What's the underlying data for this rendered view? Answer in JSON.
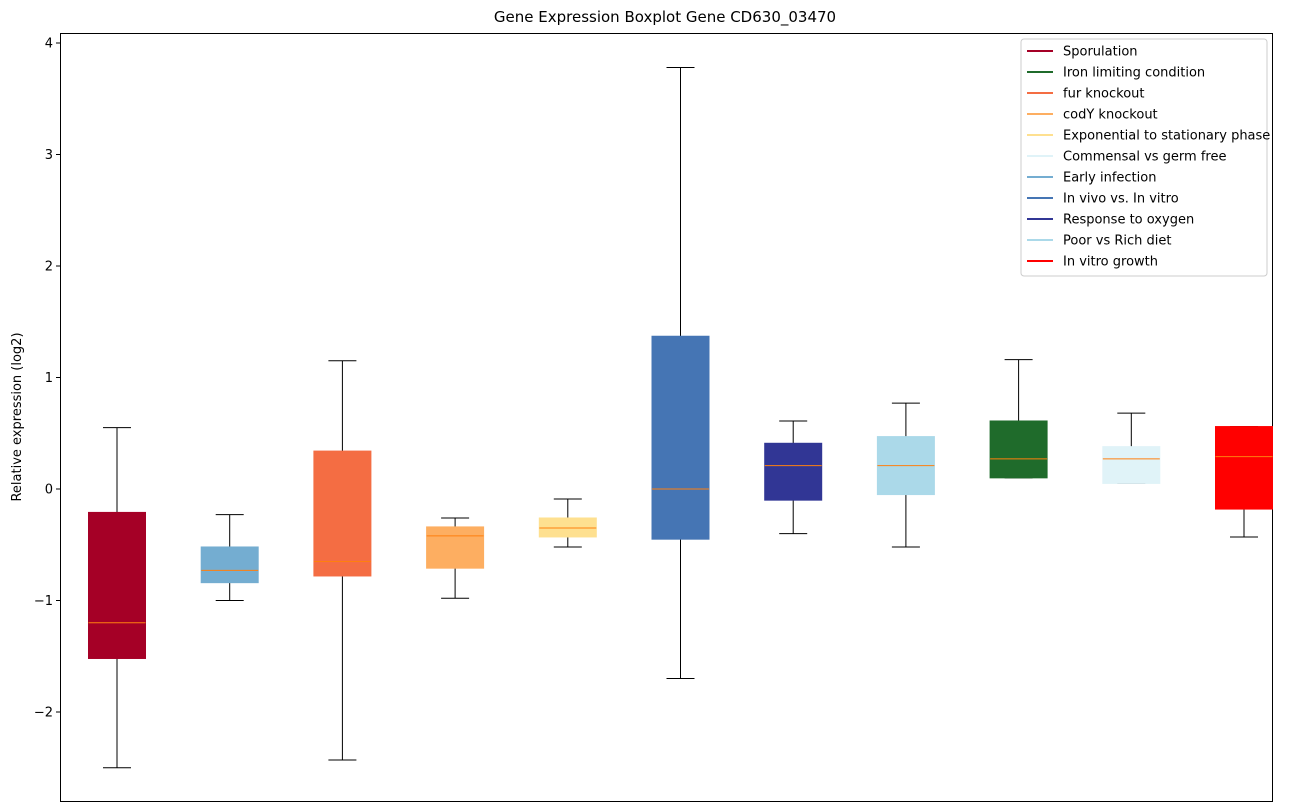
{
  "chart_data": {
    "type": "boxplot",
    "title": "Gene Expression Boxplot Gene CD630_03470",
    "xlabel": "",
    "ylabel": "Relative expression (log2)",
    "ylim": [
      -2.8,
      4.1
    ],
    "yticks": [
      {
        "value": -2,
        "label": "−2"
      },
      {
        "value": -1,
        "label": "−1"
      },
      {
        "value": 0,
        "label": "0"
      },
      {
        "value": 1,
        "label": "1"
      },
      {
        "value": 2,
        "label": "2"
      },
      {
        "value": 3,
        "label": "3"
      },
      {
        "value": 4,
        "label": "4"
      }
    ],
    "grid": false,
    "legend_position": "top-right",
    "legend": [
      {
        "label": "Sporulation",
        "color": "#a50026"
      },
      {
        "label": "Iron limiting condition",
        "color": "#1f6b2b"
      },
      {
        "label": "fur knockout",
        "color": "#f46d43"
      },
      {
        "label": "codY knockout",
        "color": "#fdae61"
      },
      {
        "label": "Exponential to stationary phase",
        "color": "#fee090"
      },
      {
        "label": "Commensal vs germ free",
        "color": "#e0f3f8"
      },
      {
        "label": "Early infection",
        "color": "#74add1"
      },
      {
        "label": "In vivo vs. In vitro",
        "color": "#4575b4"
      },
      {
        "label": "Response to oxygen",
        "color": "#313695"
      },
      {
        "label": "Poor vs Rich diet",
        "color": "#abd9e9"
      },
      {
        "label": "In vitro growth",
        "color": "#ff0000"
      }
    ],
    "boxes": [
      {
        "color": "#a50026",
        "whisker_low": -2.5,
        "q1": -1.52,
        "median": -1.2,
        "q3": -0.21,
        "whisker_high": 0.55
      },
      {
        "color": "#74add1",
        "whisker_low": -1.0,
        "q1": -0.84,
        "median": -0.73,
        "q3": -0.52,
        "whisker_high": -0.23
      },
      {
        "color": "#f46d43",
        "whisker_low": -2.43,
        "q1": -0.78,
        "median": -0.65,
        "q3": 0.34,
        "whisker_high": 1.15
      },
      {
        "color": "#fdae61",
        "whisker_low": -0.98,
        "q1": -0.71,
        "median": -0.42,
        "q3": -0.34,
        "whisker_high": -0.26
      },
      {
        "color": "#fee090",
        "whisker_low": -0.52,
        "q1": -0.43,
        "median": -0.35,
        "q3": -0.26,
        "whisker_high": -0.09
      },
      {
        "color": "#4575b4",
        "whisker_low": -1.7,
        "q1": -0.45,
        "median": 0.0,
        "q3": 1.37,
        "whisker_high": 3.78
      },
      {
        "color": "#313695",
        "whisker_low": -0.4,
        "q1": -0.1,
        "median": 0.21,
        "q3": 0.41,
        "whisker_high": 0.61
      },
      {
        "color": "#abd9e9",
        "whisker_low": -0.52,
        "q1": -0.05,
        "median": 0.21,
        "q3": 0.47,
        "whisker_high": 0.77
      },
      {
        "color": "#1f6b2b",
        "whisker_low": 0.1,
        "q1": 0.1,
        "median": 0.27,
        "q3": 0.61,
        "whisker_high": 1.16
      },
      {
        "color": "#e0f3f8",
        "whisker_low": 0.05,
        "q1": 0.05,
        "median": 0.27,
        "q3": 0.38,
        "whisker_high": 0.68
      },
      {
        "color": "#ff0000",
        "whisker_low": -0.43,
        "q1": -0.18,
        "median": 0.29,
        "q3": 0.56,
        "whisker_high": 0.56
      }
    ],
    "median_color": "#ff7f0e"
  }
}
